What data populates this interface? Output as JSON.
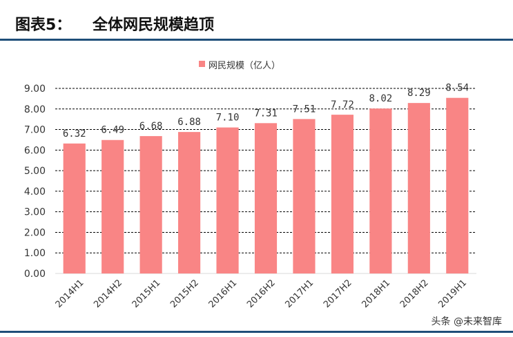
{
  "header": {
    "figure_label": "图表5：",
    "title": "全体网民规模趋顶"
  },
  "colors": {
    "bar": "#F98585",
    "rule": "#1F4E79",
    "gridline": "#000000",
    "axis_text": "#333333"
  },
  "watermark": "头条 @未来智库",
  "chart_data": {
    "type": "bar",
    "categories": [
      "2014H1",
      "2014H2",
      "2015H1",
      "2015H2",
      "2016H1",
      "2016H2",
      "2017H1",
      "2017H2",
      "2018H1",
      "2018H2",
      "2019H1"
    ],
    "series": [
      {
        "name": "网民规模（亿人）",
        "values": [
          6.32,
          6.49,
          6.68,
          6.88,
          7.1,
          7.31,
          7.51,
          7.72,
          8.02,
          8.29,
          8.54
        ]
      }
    ],
    "data_labels": [
      "6.32",
      "6.49",
      "6.68",
      "6.88",
      "7.10",
      "7.31",
      "7.51",
      "7.72",
      "8.02",
      "8.29",
      "8.54"
    ],
    "ylim": [
      0,
      9
    ],
    "yticks": [
      "0.00",
      "1.00",
      "2.00",
      "3.00",
      "4.00",
      "5.00",
      "6.00",
      "7.00",
      "8.00",
      "9.00"
    ],
    "grid": true,
    "gridline_style": "dashed",
    "legend_position": "top-center",
    "xlabel": "",
    "ylabel": ""
  }
}
